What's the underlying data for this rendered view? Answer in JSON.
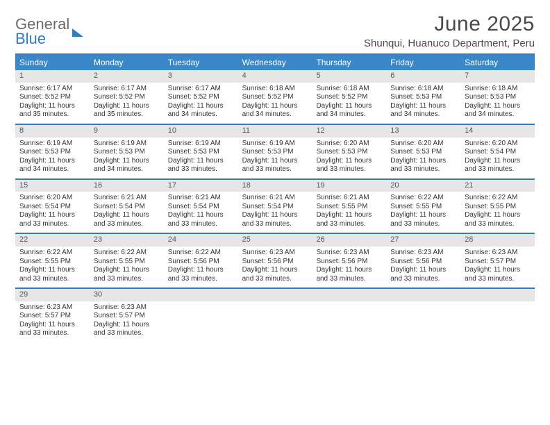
{
  "brand": {
    "general": "General",
    "blue": "Blue"
  },
  "title": "June 2025",
  "location": "Shunqui, Huanuco Department, Peru",
  "colors": {
    "accent": "#2f7cc1",
    "header_bg": "#3a87c8",
    "daynum_bg": "#e6e6e6",
    "text": "#333333"
  },
  "dow": [
    "Sunday",
    "Monday",
    "Tuesday",
    "Wednesday",
    "Thursday",
    "Friday",
    "Saturday"
  ],
  "weeks": [
    [
      {
        "n": "1",
        "sr": "6:17 AM",
        "ss": "5:52 PM",
        "dl": "11 hours and 35 minutes."
      },
      {
        "n": "2",
        "sr": "6:17 AM",
        "ss": "5:52 PM",
        "dl": "11 hours and 35 minutes."
      },
      {
        "n": "3",
        "sr": "6:17 AM",
        "ss": "5:52 PM",
        "dl": "11 hours and 34 minutes."
      },
      {
        "n": "4",
        "sr": "6:18 AM",
        "ss": "5:52 PM",
        "dl": "11 hours and 34 minutes."
      },
      {
        "n": "5",
        "sr": "6:18 AM",
        "ss": "5:52 PM",
        "dl": "11 hours and 34 minutes."
      },
      {
        "n": "6",
        "sr": "6:18 AM",
        "ss": "5:53 PM",
        "dl": "11 hours and 34 minutes."
      },
      {
        "n": "7",
        "sr": "6:18 AM",
        "ss": "5:53 PM",
        "dl": "11 hours and 34 minutes."
      }
    ],
    [
      {
        "n": "8",
        "sr": "6:19 AM",
        "ss": "5:53 PM",
        "dl": "11 hours and 34 minutes."
      },
      {
        "n": "9",
        "sr": "6:19 AM",
        "ss": "5:53 PM",
        "dl": "11 hours and 34 minutes."
      },
      {
        "n": "10",
        "sr": "6:19 AM",
        "ss": "5:53 PM",
        "dl": "11 hours and 33 minutes."
      },
      {
        "n": "11",
        "sr": "6:19 AM",
        "ss": "5:53 PM",
        "dl": "11 hours and 33 minutes."
      },
      {
        "n": "12",
        "sr": "6:20 AM",
        "ss": "5:53 PM",
        "dl": "11 hours and 33 minutes."
      },
      {
        "n": "13",
        "sr": "6:20 AM",
        "ss": "5:53 PM",
        "dl": "11 hours and 33 minutes."
      },
      {
        "n": "14",
        "sr": "6:20 AM",
        "ss": "5:54 PM",
        "dl": "11 hours and 33 minutes."
      }
    ],
    [
      {
        "n": "15",
        "sr": "6:20 AM",
        "ss": "5:54 PM",
        "dl": "11 hours and 33 minutes."
      },
      {
        "n": "16",
        "sr": "6:21 AM",
        "ss": "5:54 PM",
        "dl": "11 hours and 33 minutes."
      },
      {
        "n": "17",
        "sr": "6:21 AM",
        "ss": "5:54 PM",
        "dl": "11 hours and 33 minutes."
      },
      {
        "n": "18",
        "sr": "6:21 AM",
        "ss": "5:54 PM",
        "dl": "11 hours and 33 minutes."
      },
      {
        "n": "19",
        "sr": "6:21 AM",
        "ss": "5:55 PM",
        "dl": "11 hours and 33 minutes."
      },
      {
        "n": "20",
        "sr": "6:22 AM",
        "ss": "5:55 PM",
        "dl": "11 hours and 33 minutes."
      },
      {
        "n": "21",
        "sr": "6:22 AM",
        "ss": "5:55 PM",
        "dl": "11 hours and 33 minutes."
      }
    ],
    [
      {
        "n": "22",
        "sr": "6:22 AM",
        "ss": "5:55 PM",
        "dl": "11 hours and 33 minutes."
      },
      {
        "n": "23",
        "sr": "6:22 AM",
        "ss": "5:55 PM",
        "dl": "11 hours and 33 minutes."
      },
      {
        "n": "24",
        "sr": "6:22 AM",
        "ss": "5:56 PM",
        "dl": "11 hours and 33 minutes."
      },
      {
        "n": "25",
        "sr": "6:23 AM",
        "ss": "5:56 PM",
        "dl": "11 hours and 33 minutes."
      },
      {
        "n": "26",
        "sr": "6:23 AM",
        "ss": "5:56 PM",
        "dl": "11 hours and 33 minutes."
      },
      {
        "n": "27",
        "sr": "6:23 AM",
        "ss": "5:56 PM",
        "dl": "11 hours and 33 minutes."
      },
      {
        "n": "28",
        "sr": "6:23 AM",
        "ss": "5:57 PM",
        "dl": "11 hours and 33 minutes."
      }
    ],
    [
      {
        "n": "29",
        "sr": "6:23 AM",
        "ss": "5:57 PM",
        "dl": "11 hours and 33 minutes."
      },
      {
        "n": "30",
        "sr": "6:23 AM",
        "ss": "5:57 PM",
        "dl": "11 hours and 33 minutes."
      },
      {
        "blank": true
      },
      {
        "blank": true
      },
      {
        "blank": true
      },
      {
        "blank": true
      },
      {
        "blank": true
      }
    ]
  ],
  "labels": {
    "sunrise": "Sunrise:",
    "sunset": "Sunset:",
    "daylight": "Daylight:"
  }
}
